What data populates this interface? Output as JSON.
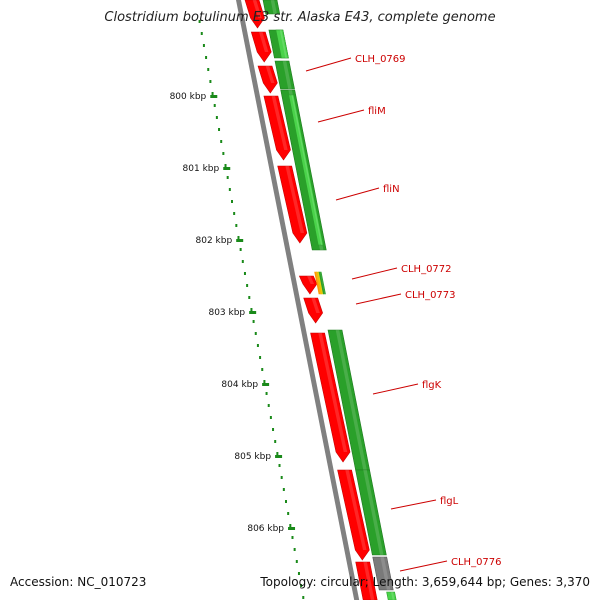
{
  "title": "Clostridium botulinum E3 str. Alaska E43, complete genome",
  "footer": {
    "accession": "Accession: NC_010723",
    "summary": "Topology: circular; Length: 3,659,644 bp; Genes: 3,370"
  },
  "ticks": [
    {
      "label": "800 kbp",
      "kbp": 800
    },
    {
      "label": "801 kbp",
      "kbp": 801
    },
    {
      "label": "802 kbp",
      "kbp": 802
    },
    {
      "label": "803 kbp",
      "kbp": 803
    },
    {
      "label": "804 kbp",
      "kbp": 804
    },
    {
      "label": "805 kbp",
      "kbp": 805
    },
    {
      "label": "806 kbp",
      "kbp": 806
    }
  ],
  "genes": [
    {
      "name": "CLH_0769"
    },
    {
      "name": "fliM"
    },
    {
      "name": "fliN"
    },
    {
      "name": "CLH_0772"
    },
    {
      "name": "CLH_0773"
    },
    {
      "name": "flgK"
    },
    {
      "name": "flgL"
    },
    {
      "name": "CLH_0776"
    }
  ],
  "colors": {
    "gene_red": "#ff0000",
    "gene_red_dark": "#c80000",
    "gene_green": "#2aa02a",
    "gene_green_dark": "#1d7a1d",
    "gene_light_green": "#4ad34a",
    "backbone": "#808080",
    "tick": "#1a8a1a",
    "label_red": "#cc0000",
    "leader": "#cc0000"
  }
}
